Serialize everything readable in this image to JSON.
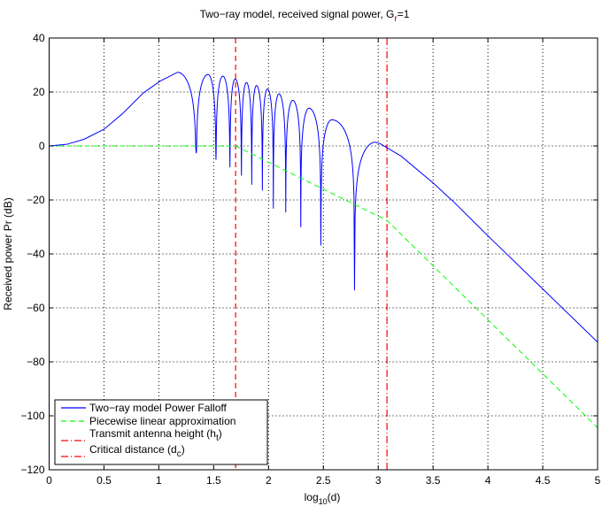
{
  "chart_data": {
    "type": "line",
    "title": {
      "main": "Two−ray model, received signal power, G",
      "sub": "r",
      "end": "=1"
    },
    "xlabel": {
      "main": "log",
      "sub": "10",
      "end": "(d)"
    },
    "ylabel": "Received power Pr (dB)",
    "xlim": [
      0,
      5
    ],
    "ylim": [
      -120,
      40
    ],
    "xticks": [
      0,
      0.5,
      1,
      1.5,
      2,
      2.5,
      3,
      3.5,
      4,
      4.5,
      5
    ],
    "xtick_labels": [
      "0",
      "0.5",
      "1",
      "1.5",
      "2",
      "2.5",
      "3",
      "3.5",
      "4",
      "4.5",
      "5"
    ],
    "yticks": [
      -120,
      -100,
      -80,
      -60,
      -40,
      -20,
      0,
      20,
      40
    ],
    "ytick_labels": [
      "−120",
      "−100",
      "−80",
      "−60",
      "−40",
      "−20",
      "0",
      "20",
      "40"
    ],
    "grid": true,
    "legend_placement": "bottom-left",
    "series": [
      {
        "name": "Two−ray model Power Falloff",
        "color": "#0000ff",
        "style": "solid",
        "x": [
          0,
          0.16,
          0.32,
          0.5,
          0.67,
          0.86,
          1.01,
          1.17,
          1.341,
          1.448,
          1.521,
          1.583,
          1.648,
          1.696,
          1.753,
          1.799,
          1.847,
          1.89,
          1.944,
          1.99,
          2.044,
          2.095,
          2.157,
          2.221,
          2.294,
          2.369,
          2.477,
          2.577,
          2.784,
          2.975,
          3.02,
          3.21,
          3.5,
          3.69,
          4.0,
          4.5,
          5.0
        ],
        "y": [
          0,
          0.6,
          2.5,
          6.2,
          12.0,
          19.7,
          24.0,
          27.3,
          -2.7,
          26.5,
          -5.1,
          25.9,
          -7.9,
          24.8,
          -11.0,
          23.5,
          -14.4,
          22.4,
          -16.5,
          21.1,
          -23.2,
          19.3,
          -24.6,
          16.9,
          -30.1,
          14.0,
          -36.9,
          9.7,
          -53.5,
          1.4,
          0.8,
          -3.8,
          -13.7,
          -20.8,
          -33.3,
          -53.0,
          -72.7
        ]
      },
      {
        "name": "Piecewise linear approximation",
        "color": "#00ff00",
        "style": "dashed",
        "x": [
          0,
          1.7,
          3.08,
          5
        ],
        "y": [
          0,
          0,
          -27.6,
          -104.4
        ]
      }
    ],
    "vlines": [
      {
        "name": {
          "main": "Transmit antenna height (h",
          "sub": "t",
          "end": ")"
        },
        "x": 1.7,
        "color": "#ff0000",
        "style": "dashed"
      },
      {
        "name": {
          "main": "Critical distance (d",
          "sub": "c",
          "end": ")"
        },
        "x": 3.08,
        "color": "#ff0000",
        "style": "dashdot"
      }
    ]
  }
}
